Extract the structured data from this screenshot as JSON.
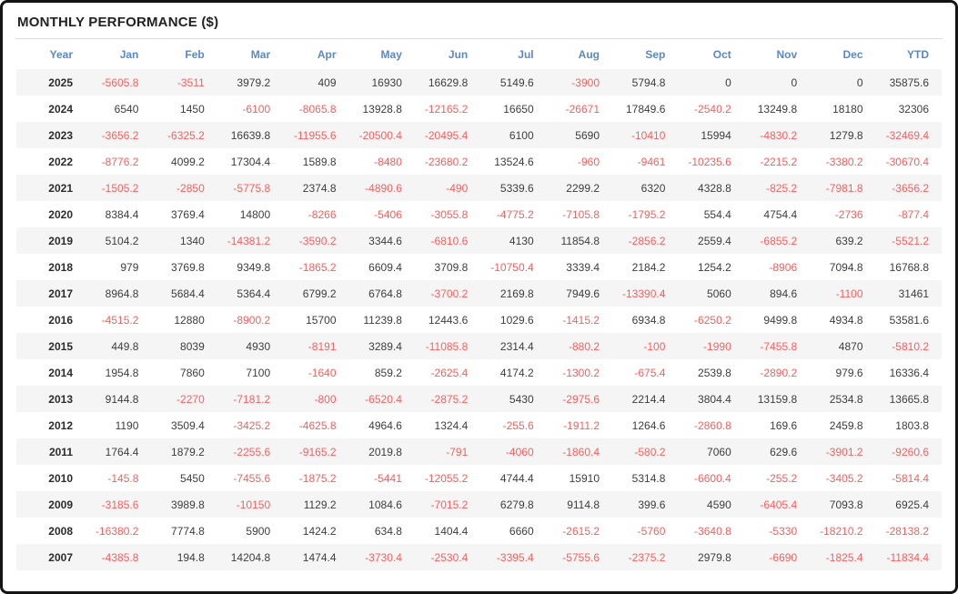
{
  "title": "MONTHLY PERFORMANCE ($)",
  "colors": {
    "header_blue": "#5b89c4",
    "negative_red": "#ff5c5c",
    "positive_dark": "#3d3d3d",
    "stripe_gray": "#f5f5f5",
    "frame_border": "#141414"
  },
  "chart_data": {
    "type": "table",
    "title": "MONTHLY PERFORMANCE ($)",
    "columns": [
      "Year",
      "Jan",
      "Feb",
      "Mar",
      "Apr",
      "May",
      "Jun",
      "Jul",
      "Aug",
      "Sep",
      "Oct",
      "Nov",
      "Dec",
      "YTD"
    ],
    "rows": [
      {
        "year": "2025",
        "values": [
          -5605.8,
          -3511,
          3979.2,
          409,
          16930,
          16629.8,
          5149.6,
          -3900,
          5794.8,
          0,
          0,
          0,
          35875.6
        ]
      },
      {
        "year": "2024",
        "values": [
          6540,
          1450,
          -6100,
          -8065.8,
          13928.8,
          -12165.2,
          16650,
          -26671,
          17849.6,
          -2540.2,
          13249.8,
          18180,
          32306
        ]
      },
      {
        "year": "2023",
        "values": [
          -3656.2,
          -6325.2,
          16639.8,
          -11955.6,
          -20500.4,
          -20495.4,
          6100,
          5690,
          -10410,
          15994,
          -4830.2,
          1279.8,
          -32469.4
        ]
      },
      {
        "year": "2022",
        "values": [
          -8776.2,
          4099.2,
          17304.4,
          1589.8,
          -8480,
          -23680.2,
          13524.6,
          -960,
          -9461,
          -10235.6,
          -2215.2,
          -3380.2,
          -30670.4
        ]
      },
      {
        "year": "2021",
        "values": [
          -1505.2,
          -2850,
          -5775.8,
          2374.8,
          -4890.6,
          -490,
          5339.6,
          2299.2,
          6320,
          4328.8,
          -825.2,
          -7981.8,
          -3656.2
        ]
      },
      {
        "year": "2020",
        "values": [
          8384.4,
          3769.4,
          14800,
          -8266,
          -5406,
          -3055.8,
          -4775.2,
          -7105.8,
          -1795.2,
          554.4,
          4754.4,
          -2736,
          -877.4
        ]
      },
      {
        "year": "2019",
        "values": [
          5104.2,
          1340,
          -14381.2,
          -3590.2,
          3344.6,
          -6810.6,
          4130,
          11854.8,
          -2856.2,
          2559.4,
          -6855.2,
          639.2,
          -5521.2
        ]
      },
      {
        "year": "2018",
        "values": [
          979,
          3769.8,
          9349.8,
          -1865.2,
          6609.4,
          3709.8,
          -10750.4,
          3339.4,
          2184.2,
          1254.2,
          -8906,
          7094.8,
          16768.8
        ]
      },
      {
        "year": "2017",
        "values": [
          8964.8,
          5684.4,
          5364.4,
          6799.2,
          6764.8,
          -3700.2,
          2169.8,
          7949.6,
          -13390.4,
          5060,
          894.6,
          -1100,
          31461
        ]
      },
      {
        "year": "2016",
        "values": [
          -4515.2,
          12880,
          -8900.2,
          15700,
          11239.8,
          12443.6,
          1029.6,
          -1415.2,
          6934.8,
          -6250.2,
          9499.8,
          4934.8,
          53581.6
        ]
      },
      {
        "year": "2015",
        "values": [
          449.8,
          8039,
          4930,
          -8191,
          3289.4,
          -11085.8,
          2314.4,
          -880.2,
          -100,
          -1990,
          -7455.8,
          4870,
          -5810.2
        ]
      },
      {
        "year": "2014",
        "values": [
          1954.8,
          7860,
          7100,
          -1640,
          859.2,
          -2625.4,
          4174.2,
          -1300.2,
          -675.4,
          2539.8,
          -2890.2,
          979.6,
          16336.4
        ]
      },
      {
        "year": "2013",
        "values": [
          9144.8,
          -2270,
          -7181.2,
          -800,
          -6520.4,
          -2875.2,
          5430,
          -2975.6,
          2214.4,
          3804.4,
          13159.8,
          2534.8,
          13665.8
        ]
      },
      {
        "year": "2012",
        "values": [
          1190,
          3509.4,
          -3425.2,
          -4625.8,
          4964.6,
          1324.4,
          -255.6,
          -1911.2,
          1264.6,
          -2860.8,
          169.6,
          2459.8,
          1803.8
        ]
      },
      {
        "year": "2011",
        "values": [
          1764.4,
          1879.2,
          -2255.6,
          -9165.2,
          2019.8,
          -791,
          -4060,
          -1860.4,
          -580.2,
          7060,
          629.6,
          -3901.2,
          -9260.6
        ]
      },
      {
        "year": "2010",
        "values": [
          -145.8,
          5450,
          -7455.6,
          -1875.2,
          -5441,
          -12055.2,
          4744.4,
          15910,
          5314.8,
          -6600.4,
          -255.2,
          -3405.2,
          -5814.4
        ]
      },
      {
        "year": "2009",
        "values": [
          -3185.6,
          3989.8,
          -10150,
          1129.2,
          1084.6,
          -7015.2,
          6279.8,
          9114.8,
          399.6,
          4590,
          -6405.4,
          7093.8,
          6925.4
        ]
      },
      {
        "year": "2008",
        "values": [
          -16380.2,
          7774.8,
          5900,
          1424.2,
          634.8,
          1404.4,
          6660,
          -2615.2,
          -5760,
          -3640.8,
          -5330,
          -18210.2,
          -28138.2
        ]
      },
      {
        "year": "2007",
        "values": [
          -4385.8,
          194.8,
          14204.8,
          1474.4,
          -3730.4,
          -2530.4,
          -3395.4,
          -5755.6,
          -2375.2,
          2979.8,
          -6690,
          -1825.4,
          -11834.4
        ]
      }
    ]
  }
}
